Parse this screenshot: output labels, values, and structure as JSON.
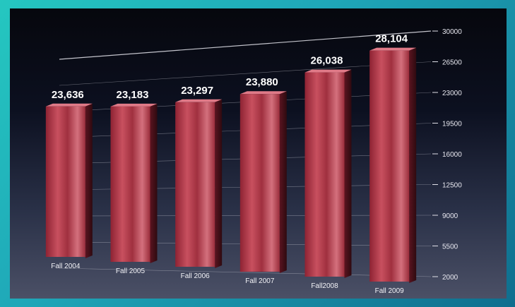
{
  "chart_data": {
    "type": "bar",
    "categories": [
      "Fall 2004",
      "Fall 2005",
      "Fall 2006",
      "Fall 2007",
      "Fall2008",
      "Fall 2009"
    ],
    "values": [
      23636,
      23183,
      23297,
      23880,
      26038,
      28104
    ],
    "data_labels": [
      "23,636",
      "23,183",
      "23,297",
      "23,880",
      "26,038",
      "28,104"
    ],
    "y_ticks": [
      "2000",
      "5500",
      "9000",
      "12500",
      "16000",
      "19500",
      "23000",
      "26500",
      "30000"
    ],
    "ylim": [
      2000,
      30000
    ],
    "grid": true,
    "legend": "none",
    "colors": {
      "bar": "#b23a4c",
      "bar_light": "#e07a88",
      "bar_dark": "#6a1a26",
      "grid": "#d8d8e0"
    }
  }
}
